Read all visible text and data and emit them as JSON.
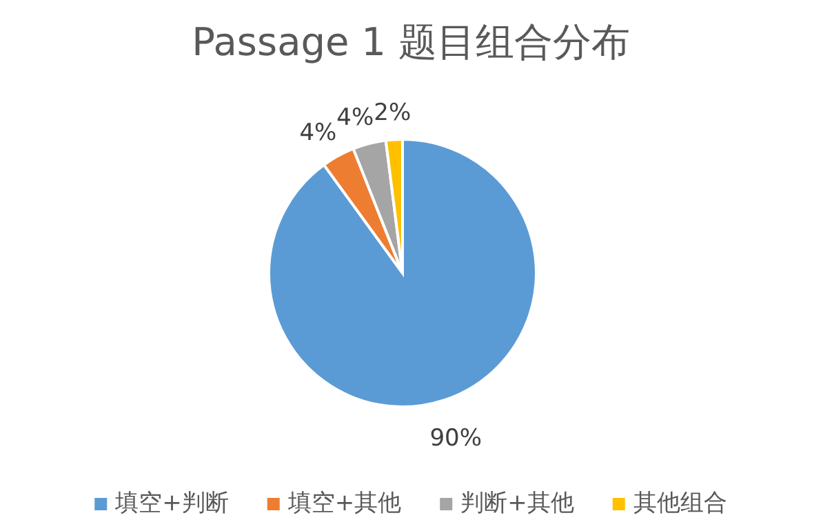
{
  "chart_data": {
    "type": "pie",
    "title": "Passage 1 题目组合分布",
    "categories": [
      "填空+判断",
      "填空+其他",
      "判断+其他",
      "其他组合"
    ],
    "values": [
      90,
      4,
      4,
      2
    ],
    "colors": [
      "#5b9bd5",
      "#ed7d31",
      "#a5a5a5",
      "#ffc000"
    ],
    "value_labels": [
      "90%",
      "4%",
      "4%",
      "2%"
    ],
    "legend": "bottom"
  }
}
